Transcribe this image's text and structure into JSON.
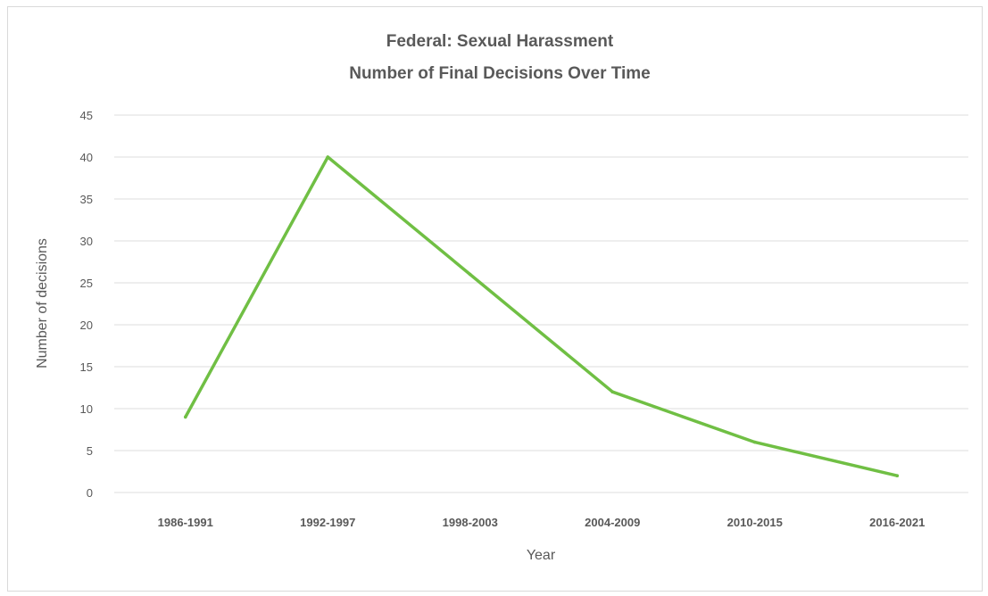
{
  "chart_data": {
    "type": "line",
    "title_lines": [
      "Federal: Sexual Harassment",
      "Number of Final Decisions Over Time"
    ],
    "xlabel": "Year",
    "ylabel": "Number of decisions",
    "categories": [
      "1986-1991",
      "1992-1997",
      "1998-2003",
      "2004-2009",
      "2010-2015",
      "2016-2021"
    ],
    "series": [
      {
        "values": [
          9,
          40,
          26,
          12,
          6,
          2
        ],
        "color": "#70bf44"
      }
    ],
    "ylim": [
      0,
      45
    ],
    "yticks": [
      0,
      5,
      10,
      15,
      20,
      25,
      30,
      35,
      40,
      45
    ],
    "grid": true,
    "legend": "none"
  }
}
